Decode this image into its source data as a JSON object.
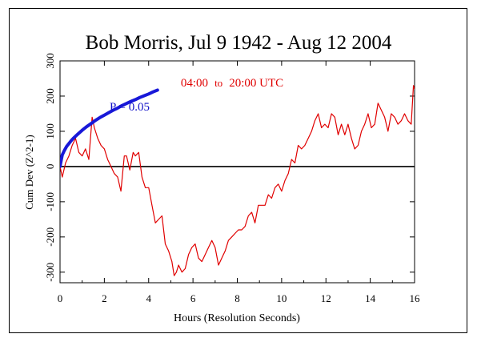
{
  "chart_data": {
    "type": "line",
    "title": "Bob Morris, Jul 9 1942 - Aug 12 2004",
    "xlabel": "Hours (Resolution Seconds)",
    "ylabel": "Cum Dev (Z^2-1)",
    "xlim": [
      0,
      16
    ],
    "ylim": [
      -330,
      300
    ],
    "x_ticks": [
      0,
      2,
      4,
      6,
      8,
      10,
      12,
      14,
      16
    ],
    "y_ticks": [
      -300,
      -200,
      -100,
      0,
      100,
      200,
      300
    ],
    "grid": false,
    "annotations": {
      "time_range": {
        "start": "04:00",
        "to": "to",
        "end": "20:00 UTC"
      },
      "p_value": "P = 0.05"
    },
    "series": [
      {
        "color": "#e00000",
        "x": [
          0,
          0.1,
          0.25,
          0.4,
          0.55,
          0.7,
          0.85,
          1.0,
          1.15,
          1.3,
          1.45,
          1.55,
          1.7,
          1.85,
          2.0,
          2.15,
          2.3,
          2.45,
          2.6,
          2.75,
          2.9,
          3.0,
          3.15,
          3.3,
          3.4,
          3.55,
          3.7,
          3.85,
          4.0,
          4.15,
          4.3,
          4.45,
          4.6,
          4.75,
          4.9,
          5.05,
          5.15,
          5.25,
          5.35,
          5.5,
          5.65,
          5.8,
          5.95,
          6.1,
          6.25,
          6.4,
          6.55,
          6.7,
          6.85,
          7.0,
          7.15,
          7.3,
          7.45,
          7.6,
          7.75,
          7.9,
          8.05,
          8.2,
          8.35,
          8.5,
          8.65,
          8.8,
          8.95,
          9.1,
          9.25,
          9.4,
          9.55,
          9.7,
          9.85,
          10.0,
          10.15,
          10.3,
          10.45,
          10.6,
          10.75,
          10.9,
          11.05,
          11.2,
          11.35,
          11.5,
          11.65,
          11.8,
          11.95,
          12.1,
          12.25,
          12.4,
          12.55,
          12.7,
          12.85,
          13.0,
          13.15,
          13.3,
          13.45,
          13.6,
          13.75,
          13.9,
          14.05,
          14.2,
          14.35,
          14.5,
          14.65,
          14.8,
          14.95,
          15.1,
          15.25,
          15.4,
          15.55,
          15.7,
          15.85,
          15.95,
          16.0
        ],
        "values": [
          0,
          -30,
          10,
          30,
          60,
          80,
          40,
          30,
          50,
          20,
          140,
          110,
          80,
          60,
          50,
          20,
          0,
          -20,
          -30,
          -70,
          30,
          30,
          -10,
          40,
          30,
          40,
          -30,
          -60,
          -60,
          -110,
          -160,
          -150,
          -140,
          -220,
          -240,
          -270,
          -310,
          -300,
          -280,
          -300,
          -290,
          -250,
          -230,
          -220,
          -260,
          -270,
          -250,
          -230,
          -210,
          -230,
          -280,
          -260,
          -240,
          -210,
          -200,
          -190,
          -180,
          -180,
          -170,
          -140,
          -130,
          -160,
          -110,
          -110,
          -110,
          -80,
          -90,
          -60,
          -50,
          -70,
          -40,
          -20,
          20,
          10,
          60,
          50,
          60,
          80,
          100,
          130,
          150,
          110,
          120,
          110,
          150,
          140,
          90,
          120,
          90,
          120,
          80,
          50,
          60,
          100,
          120,
          150,
          110,
          120,
          180,
          160,
          140,
          100,
          150,
          140,
          120,
          130,
          150,
          130,
          120,
          230,
          220
        ]
      },
      {
        "name": "P = 0.05",
        "color": "#1818d8",
        "x": [
          0,
          0.05,
          0.1,
          0.2,
          0.3,
          0.4,
          0.5,
          0.6,
          0.8,
          1.0,
          1.2,
          1.4,
          1.6,
          1.8,
          2.0,
          2.2,
          2.4,
          2.6,
          2.8,
          3.0,
          3.2,
          3.4,
          3.6,
          3.8,
          4.0,
          4.2,
          4.4
        ],
        "values": [
          0,
          17,
          33,
          46,
          57,
          65,
          73,
          80,
          92,
          103,
          113,
          122,
          131,
          139,
          146,
          153,
          160,
          166,
          173,
          179,
          185,
          190,
          196,
          201,
          206,
          212,
          217
        ]
      }
    ]
  }
}
